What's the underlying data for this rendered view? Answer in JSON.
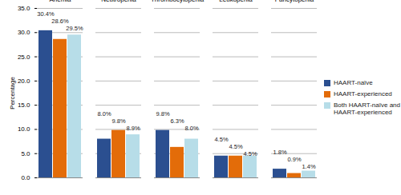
{
  "chart_data": {
    "type": "bar",
    "categories": [
      "Anemia",
      "Neutropenia",
      "Thrombocytopenia",
      "Leukopenia",
      "Pancytopenia"
    ],
    "series": [
      {
        "name": "HAART-naïve",
        "color": "#2b4f90",
        "values": [
          30.4,
          8.0,
          9.8,
          4.5,
          1.8
        ],
        "value_labels": [
          "30.4%",
          "8.0%",
          "9.8%",
          "4.5%",
          "1.8%"
        ]
      },
      {
        "name": "HAART-experienced",
        "color": "#e36c09",
        "values": [
          28.6,
          9.8,
          6.3,
          4.5,
          0.9
        ],
        "value_labels": [
          "28.6%",
          "9.8%",
          "6.3%",
          "4.5%",
          "0.9%"
        ]
      },
      {
        "name": "Both HAART-naïve and HAART-experienced",
        "color": "#b7dde8",
        "values": [
          29.5,
          8.9,
          8.0,
          4.5,
          1.4
        ],
        "value_labels": [
          "29.5%",
          "8.9%",
          "8.0%",
          "4.5%",
          "1.4%"
        ]
      }
    ],
    "ylabel": "Percentage",
    "ylim": [
      0,
      35
    ],
    "yticks": [
      {
        "value": 0,
        "label": "0.0"
      },
      {
        "value": 5,
        "label": "5.0"
      },
      {
        "value": 10,
        "label": "10.0"
      },
      {
        "value": 15,
        "label": "15.0"
      },
      {
        "value": 20,
        "label": "20.0"
      },
      {
        "value": 25,
        "label": "25.0"
      },
      {
        "value": 30,
        "label": "30.0"
      },
      {
        "value": 35,
        "label": "35.0"
      }
    ],
    "grid": true,
    "legend": "right",
    "data_labels": true
  }
}
